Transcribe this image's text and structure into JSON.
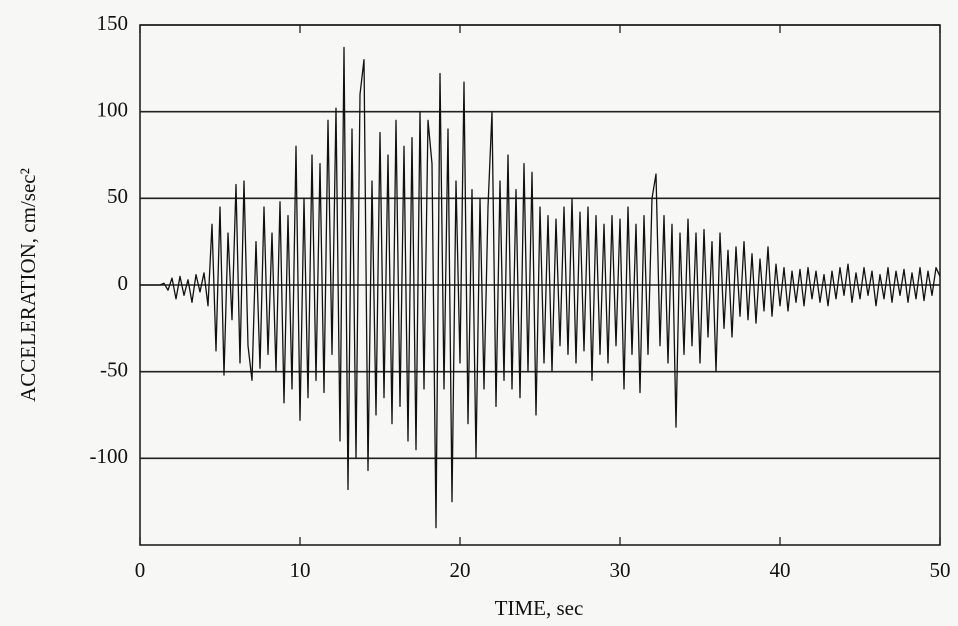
{
  "chart_data": {
    "type": "line",
    "xlabel": "TIME, sec",
    "ylabel": "ACCELERATION, cm/sec²",
    "xlim": [
      0,
      50
    ],
    "xticks": [
      0,
      10,
      20,
      30,
      40,
      50
    ],
    "ylim": [
      -150,
      150
    ],
    "yticks": [
      -100,
      -50,
      0,
      50,
      100,
      150
    ],
    "grid": true,
    "series": [
      {
        "color": "#111111",
        "x": [
          0,
          0.25,
          0.5,
          0.75,
          1,
          1.25,
          1.5,
          1.75,
          2,
          2.25,
          2.5,
          2.75,
          3,
          3.25,
          3.5,
          3.75,
          4,
          4.25,
          4.5,
          4.75,
          5,
          5.25,
          5.5,
          5.75,
          6,
          6.25,
          6.5,
          6.75,
          7,
          7.25,
          7.5,
          7.75,
          8,
          8.25,
          8.5,
          8.75,
          9,
          9.25,
          9.5,
          9.75,
          10,
          10.25,
          10.5,
          10.75,
          11,
          11.25,
          11.5,
          11.75,
          12,
          12.25,
          12.5,
          12.75,
          13,
          13.25,
          13.5,
          13.75,
          14,
          14.25,
          14.5,
          14.75,
          15,
          15.25,
          15.5,
          15.75,
          16,
          16.25,
          16.5,
          16.75,
          17,
          17.25,
          17.5,
          17.75,
          18,
          18.25,
          18.5,
          18.75,
          19,
          19.25,
          19.5,
          19.75,
          20,
          20.25,
          20.5,
          20.75,
          21,
          21.25,
          21.5,
          21.75,
          22,
          22.25,
          22.5,
          22.75,
          23,
          23.25,
          23.5,
          23.75,
          24,
          24.25,
          24.5,
          24.75,
          25,
          25.25,
          25.5,
          25.75,
          26,
          26.25,
          26.5,
          26.75,
          27,
          27.25,
          27.5,
          27.75,
          28,
          28.25,
          28.5,
          28.75,
          29,
          29.25,
          29.5,
          29.75,
          30,
          30.25,
          30.5,
          30.75,
          31,
          31.25,
          31.5,
          31.75,
          32,
          32.25,
          32.5,
          32.75,
          33,
          33.25,
          33.5,
          33.75,
          34,
          34.25,
          34.5,
          34.75,
          35,
          35.25,
          35.5,
          35.75,
          36,
          36.25,
          36.5,
          36.75,
          37,
          37.25,
          37.5,
          37.75,
          38,
          38.25,
          38.5,
          38.75,
          39,
          39.25,
          39.5,
          39.75,
          40,
          40.25,
          40.5,
          40.75,
          41,
          41.25,
          41.5,
          41.75,
          42,
          42.25,
          42.5,
          42.75,
          43,
          43.25,
          43.5,
          43.75,
          44,
          44.25,
          44.5,
          44.75,
          45,
          45.25,
          45.5,
          45.75,
          46,
          46.25,
          46.5,
          46.75,
          47,
          47.25,
          47.5,
          47.75,
          48,
          48.25,
          48.5,
          48.75,
          49,
          49.25,
          49.5,
          49.75,
          50
        ],
        "values": [
          0,
          0,
          0,
          0,
          0,
          0,
          1,
          -3,
          4,
          -8,
          5,
          -6,
          3,
          -10,
          6,
          -4,
          7,
          -12,
          35,
          -38,
          45,
          -52,
          30,
          -20,
          58,
          -45,
          60,
          -35,
          -55,
          25,
          -48,
          45,
          -40,
          30,
          -50,
          48,
          -68,
          40,
          -60,
          80,
          -78,
          50,
          -65,
          75,
          -55,
          70,
          -62,
          95,
          -40,
          102,
          -90,
          137,
          -118,
          90,
          -100,
          110,
          130,
          -107,
          60,
          -75,
          88,
          -65,
          75,
          -80,
          95,
          -70,
          80,
          -90,
          85,
          -95,
          100,
          -60,
          95,
          70,
          -140,
          122,
          -60,
          90,
          -125,
          60,
          -45,
          117,
          -80,
          55,
          -100,
          50,
          -60,
          45,
          100,
          -70,
          60,
          -55,
          75,
          -60,
          55,
          -65,
          70,
          -50,
          65,
          -75,
          45,
          -45,
          40,
          -50,
          38,
          -35,
          45,
          -40,
          50,
          -45,
          42,
          -38,
          45,
          -55,
          40,
          -40,
          35,
          -45,
          40,
          -35,
          38,
          -60,
          45,
          -40,
          35,
          -62,
          40,
          -40,
          50,
          64,
          -35,
          40,
          -45,
          35,
          -82,
          30,
          -40,
          38,
          -35,
          30,
          -45,
          32,
          -30,
          25,
          -50,
          30,
          -25,
          20,
          -30,
          22,
          -18,
          25,
          -20,
          18,
          -22,
          15,
          -15,
          22,
          -18,
          12,
          -12,
          10,
          -15,
          8,
          -10,
          9,
          -12,
          10,
          -8,
          8,
          -10,
          6,
          -12,
          8,
          -8,
          10,
          -6,
          12,
          -10,
          7,
          -8,
          10,
          -6,
          8,
          -12,
          6,
          -8,
          10,
          -10,
          8,
          -6,
          9,
          -10,
          7,
          -8,
          10,
          -9,
          8,
          -6,
          10,
          5
        ]
      }
    ]
  }
}
